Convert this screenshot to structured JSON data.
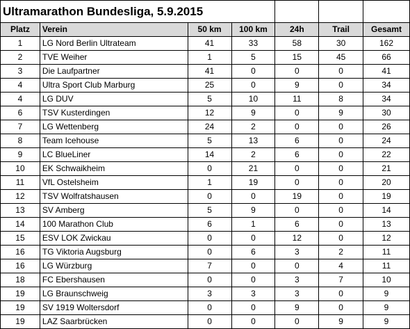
{
  "title": "Ultramarathon Bundesliga, 5.9.2015",
  "headers": [
    "Platz",
    "Verein",
    "50 km",
    "100 km",
    "24h",
    "Trail",
    "Gesamt"
  ],
  "rows": [
    [
      "1",
      "LG Nord Berlin Ultrateam",
      "41",
      "33",
      "58",
      "30",
      "162"
    ],
    [
      "2",
      "TVE Weiher",
      "1",
      "5",
      "15",
      "45",
      "66"
    ],
    [
      "3",
      "Die Laufpartner",
      "41",
      "0",
      "0",
      "0",
      "41"
    ],
    [
      "4",
      "Ultra Sport Club Marburg",
      "25",
      "0",
      "9",
      "0",
      "34"
    ],
    [
      "4",
      "LG DUV",
      "5",
      "10",
      "11",
      "8",
      "34"
    ],
    [
      "6",
      "TSV Kusterdingen",
      "12",
      "9",
      "0",
      "9",
      "30"
    ],
    [
      "7",
      "LG Wettenberg",
      "24",
      "2",
      "0",
      "0",
      "26"
    ],
    [
      "8",
      "Team Icehouse",
      "5",
      "13",
      "6",
      "0",
      "24"
    ],
    [
      "9",
      "LC BlueLiner",
      "14",
      "2",
      "6",
      "0",
      "22"
    ],
    [
      "10",
      "EK Schwaikheim",
      "0",
      "21",
      "0",
      "0",
      "21"
    ],
    [
      "11",
      "VfL Ostelsheim",
      "1",
      "19",
      "0",
      "0",
      "20"
    ],
    [
      "12",
      "TSV Wolfratshausen",
      "0",
      "0",
      "19",
      "0",
      "19"
    ],
    [
      "13",
      "SV Amberg",
      "5",
      "9",
      "0",
      "0",
      "14"
    ],
    [
      "14",
      "100 Marathon Club",
      "6",
      "1",
      "6",
      "0",
      "13"
    ],
    [
      "15",
      "ESV LOK Zwickau",
      "0",
      "0",
      "12",
      "0",
      "12"
    ],
    [
      "16",
      "TG Viktoria Augsburg",
      "0",
      "6",
      "3",
      "2",
      "11"
    ],
    [
      "16",
      "LG Würzburg",
      "7",
      "0",
      "0",
      "4",
      "11"
    ],
    [
      "18",
      "FC Ebershausen",
      "0",
      "0",
      "3",
      "7",
      "10"
    ],
    [
      "19",
      "LG Braunschweig",
      "3",
      "3",
      "3",
      "0",
      "9"
    ],
    [
      "19",
      "SV 1919 Woltersdorf",
      "0",
      "0",
      "9",
      "0",
      "9"
    ],
    [
      "19",
      "LAZ Saarbrücken",
      "0",
      "0",
      "0",
      "9",
      "9"
    ]
  ]
}
